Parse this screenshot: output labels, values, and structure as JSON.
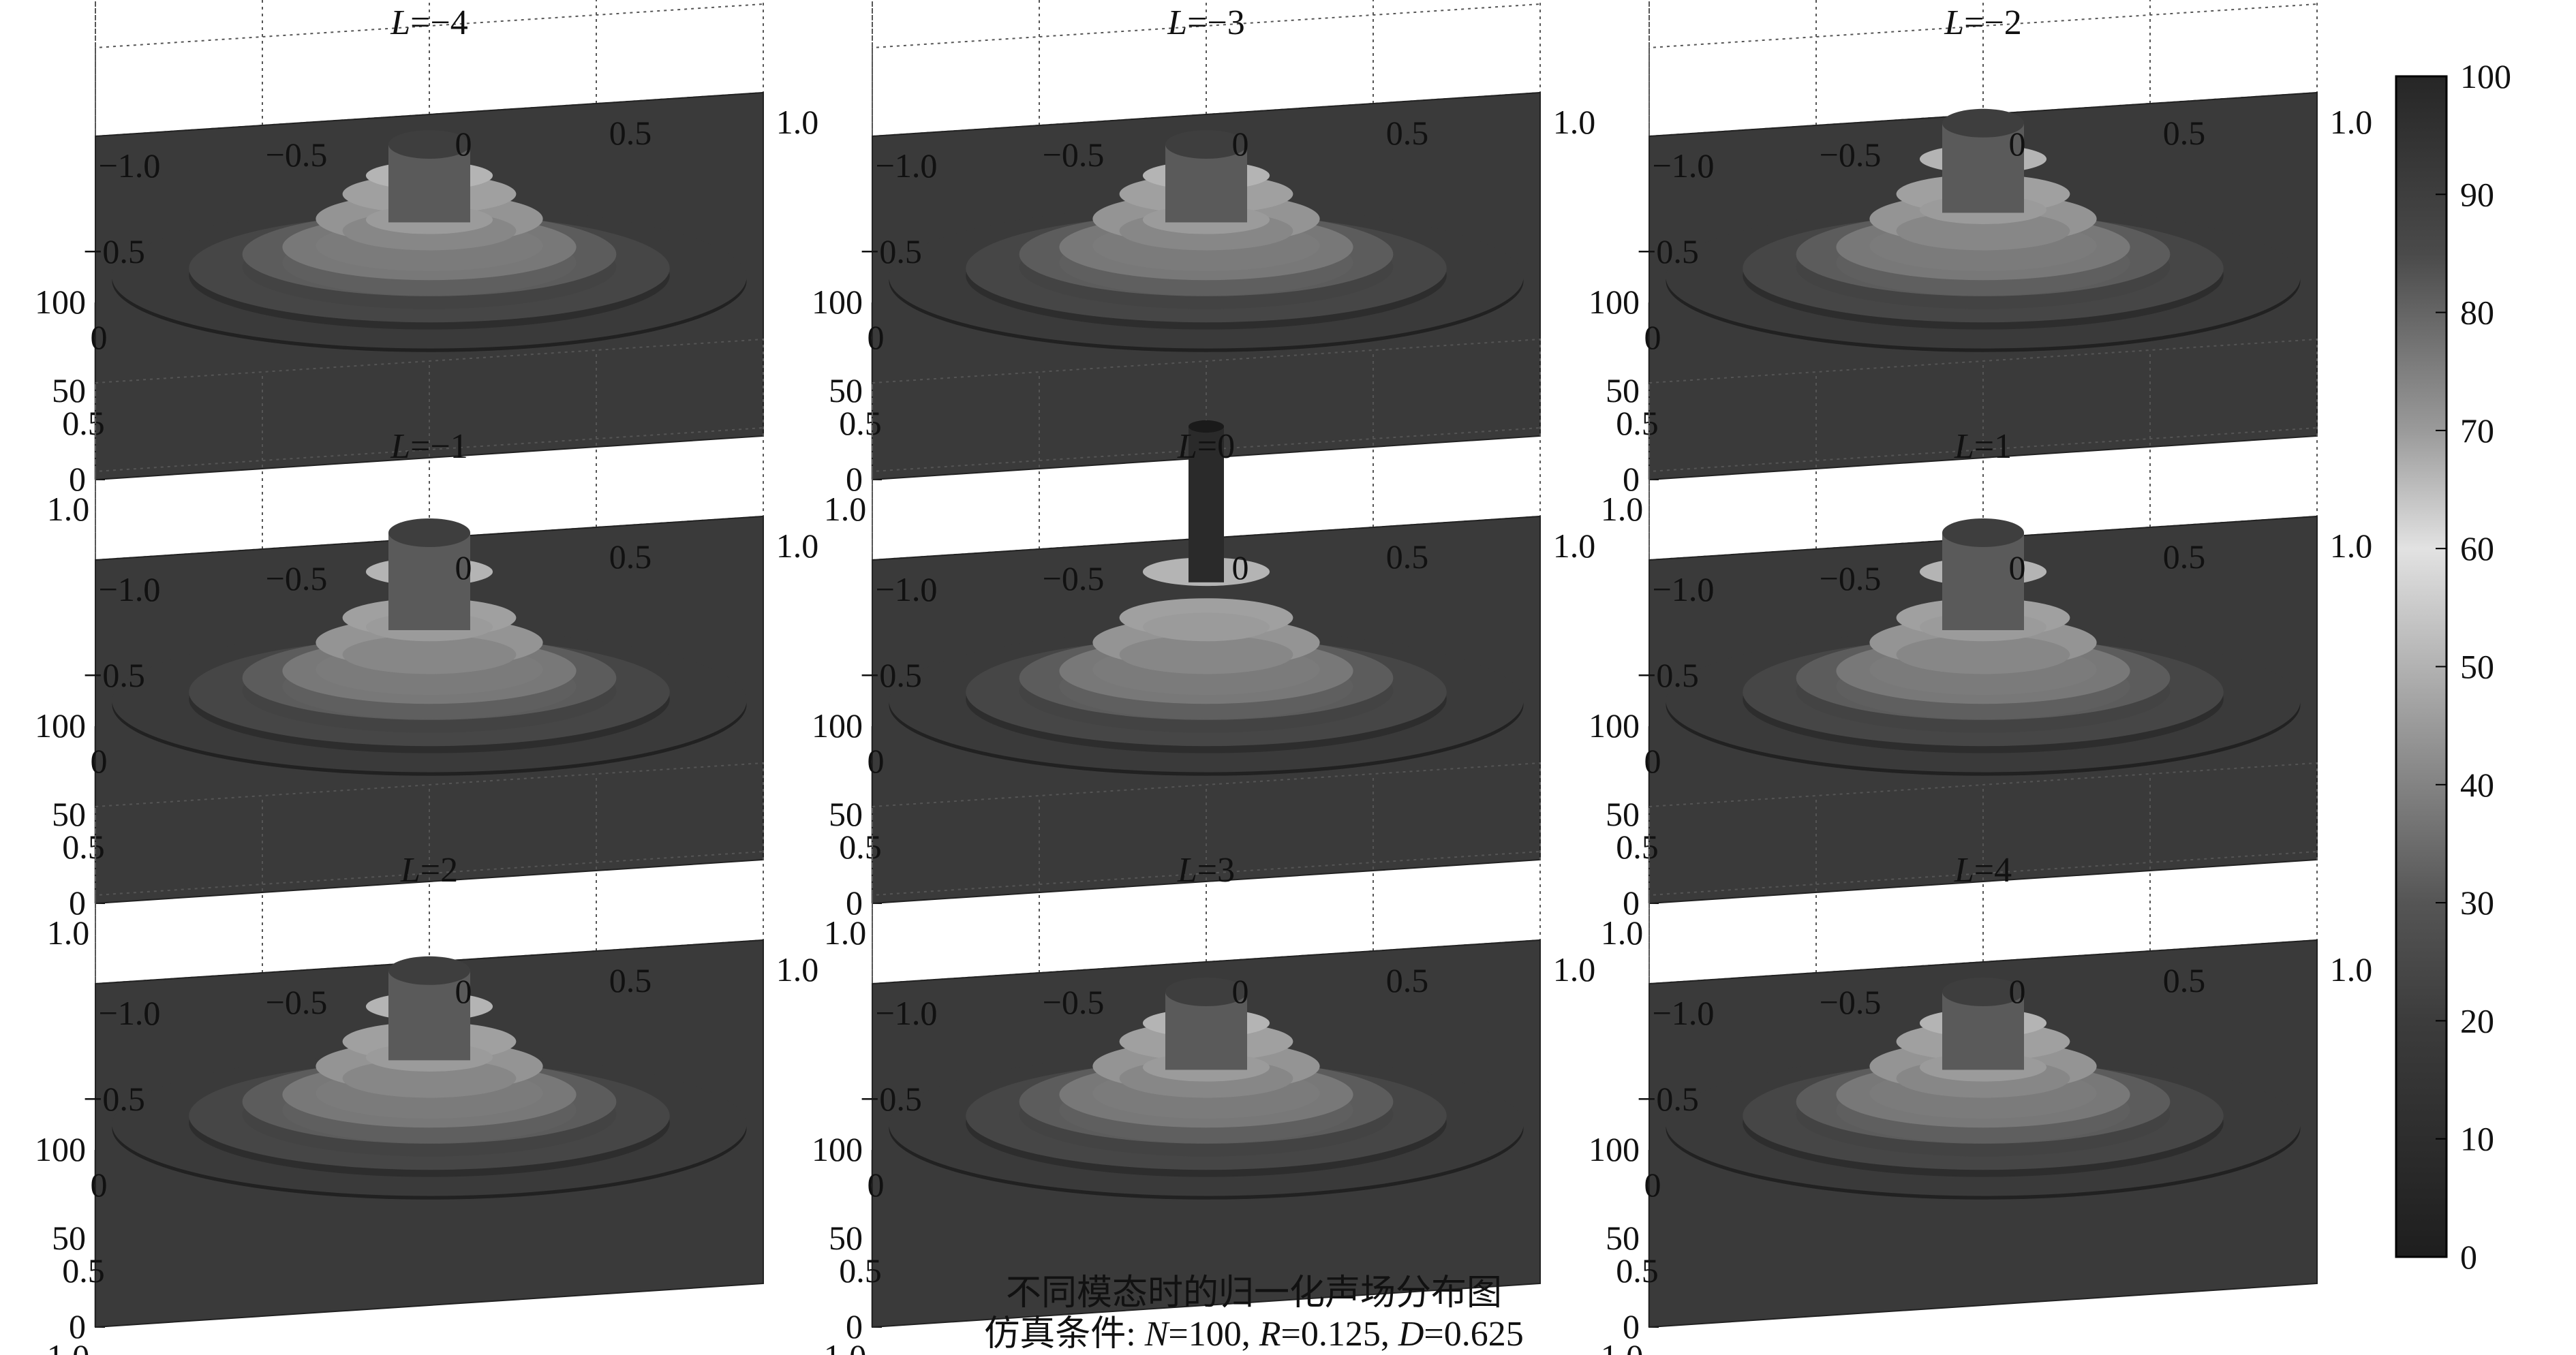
{
  "chart_data": {
    "type": "surface",
    "title": "不同模态时的归一化声场分布图",
    "subtitle": "仿真条件: N=100, R=0.125, D=0.625",
    "subtitle_parts": {
      "prefix": "仿真条件: ",
      "n_sym": "N",
      "n_val": "=100, ",
      "r_sym": "R",
      "r_val": "=0.125, ",
      "d_sym": "D",
      "d_val": "=0.625"
    },
    "grid": true,
    "colormap": "gray",
    "x_ticks": [
      "1.0",
      "0.5",
      "0",
      "−0.5",
      "−1.0"
    ],
    "y_ticks": [
      "−1.0",
      "−0.5",
      "0",
      "0.5",
      "1.0"
    ],
    "z_ticks": [
      "0",
      "50",
      "100"
    ],
    "zlim": [
      0,
      100
    ],
    "colorbar": {
      "range": [
        0,
        100
      ],
      "ticks": [
        "0",
        "10",
        "20",
        "30",
        "40",
        "50",
        "60",
        "70",
        "80",
        "90",
        "100"
      ]
    },
    "panels": [
      {
        "sym": "L",
        "mode": "=−4",
        "L": -4,
        "peak": 80
      },
      {
        "sym": "L",
        "mode": "=−3",
        "L": -3,
        "peak": 80
      },
      {
        "sym": "L",
        "mode": "=−2",
        "L": -2,
        "peak": 92
      },
      {
        "sym": "L",
        "mode": "=−1",
        "L": -1,
        "peak": 100
      },
      {
        "sym": "L",
        "mode": "=0",
        "L": 0,
        "peak": 160
      },
      {
        "sym": "L",
        "mode": "=1",
        "L": 1,
        "peak": 100
      },
      {
        "sym": "L",
        "mode": "=2",
        "L": 2,
        "peak": 92
      },
      {
        "sym": "L",
        "mode": "=3",
        "L": 3,
        "peak": 80
      },
      {
        "sym": "L",
        "mode": "=4",
        "L": 4,
        "peak": 80
      }
    ]
  }
}
